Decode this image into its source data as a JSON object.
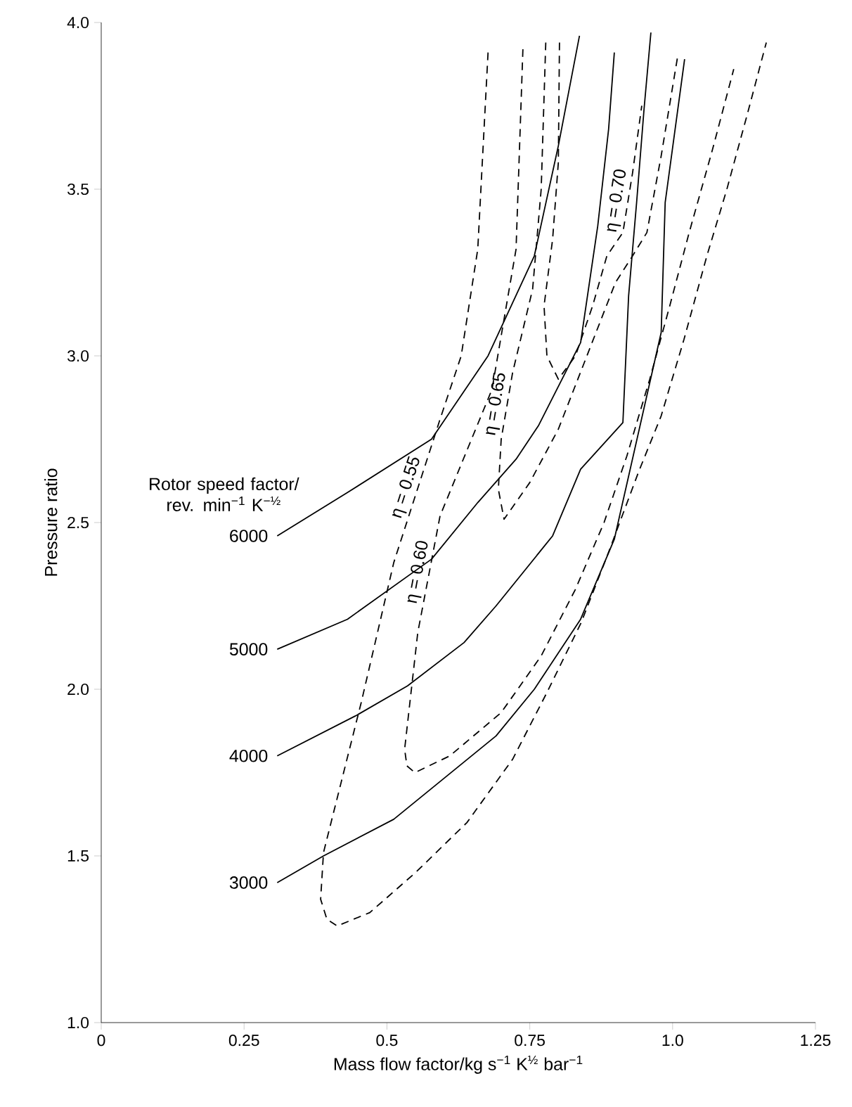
{
  "chart_data": {
    "type": "line",
    "xlabel": "Mass flow factor/kg s$^{−1}$ K$^{½}$ bar$^{−1}$",
    "ylabel": "Pressure ratio",
    "legend_title": "Rotor speed factor/ rev. min$^{−1}$ K$^{−½}$",
    "xlim": [
      0,
      1.25
    ],
    "ylim": [
      1.0,
      4.0
    ],
    "xticks": [
      0,
      0.25,
      {
        "value": 0.5,
        "label": "0.5"
      },
      0.75,
      {
        "value": 1.0,
        "label": "1.0"
      },
      1.25
    ],
    "yticks": [
      {
        "value": 1.0,
        "label": "1.0"
      },
      1.5,
      {
        "value": 2.0,
        "label": "2.0"
      },
      2.5,
      {
        "value": 3.0,
        "label": "3.0"
      },
      3.5,
      {
        "value": 4.0,
        "label": "4.0"
      }
    ],
    "series": [
      {
        "name": "3000",
        "color": "#000000",
        "line_style": "solid",
        "x": [
          0.308,
          0.389,
          0.512,
          0.691,
          0.758,
          0.839,
          0.898,
          0.972,
          0.98,
          0.987,
          1.021
        ],
        "values": [
          1.42,
          1.5,
          1.61,
          1.86,
          2.0,
          2.21,
          2.45,
          3.01,
          3.07,
          3.46,
          3.89
        ]
      },
      {
        "name": "4000",
        "color": "#000000",
        "line_style": "solid",
        "x": [
          0.308,
          0.445,
          0.536,
          0.635,
          0.691,
          0.79,
          0.839,
          0.913,
          0.923,
          0.937,
          0.95,
          0.962
        ],
        "values": [
          1.8,
          1.92,
          2.01,
          2.14,
          2.25,
          2.46,
          2.66,
          2.8,
          3.18,
          3.46,
          3.74,
          3.97
        ]
      },
      {
        "name": "5000",
        "color": "#000000",
        "line_style": "solid",
        "x": [
          0.308,
          0.431,
          0.578,
          0.659,
          0.726,
          0.765,
          0.839,
          0.869,
          0.888,
          0.898
        ],
        "values": [
          2.12,
          2.21,
          2.39,
          2.56,
          2.69,
          2.79,
          3.04,
          3.39,
          3.68,
          3.91
        ]
      },
      {
        "name": "6000",
        "color": "#000000",
        "line_style": "solid",
        "x": [
          0.308,
          0.431,
          0.578,
          0.677,
          0.758,
          0.8,
          0.837
        ],
        "values": [
          2.46,
          2.59,
          2.75,
          3.0,
          3.3,
          3.63,
          3.96
        ]
      },
      {
        "name": "η = 0.55",
        "color": "#000000",
        "line_style": "dashed",
        "x": [
          0.677,
          0.659,
          0.63,
          0.593,
          0.512,
          0.455,
          0.389,
          0.384,
          0.395,
          0.413,
          0.47,
          0.55,
          0.64,
          0.72,
          0.78,
          0.84,
          0.89,
          0.94,
          0.98,
          1.02,
          1.06,
          1.095,
          1.13,
          1.164
        ],
        "values": [
          3.91,
          3.32,
          3.0,
          2.81,
          2.38,
          1.96,
          1.51,
          1.37,
          1.31,
          1.29,
          1.33,
          1.45,
          1.6,
          1.79,
          1.99,
          2.2,
          2.42,
          2.65,
          2.82,
          3.05,
          3.3,
          3.5,
          3.72,
          3.94
        ]
      },
      {
        "name": "η = 0.60",
        "color": "#000000",
        "line_style": "dashed",
        "x": [
          0.738,
          0.726,
          0.684,
          0.593,
          0.554,
          0.531,
          0.535,
          0.549,
          0.61,
          0.7,
          0.77,
          0.83,
          0.88,
          0.92,
          0.96,
          0.995,
          1.029,
          1.07,
          1.107
        ],
        "values": [
          3.92,
          3.32,
          2.9,
          2.52,
          2.17,
          1.82,
          1.77,
          1.75,
          1.8,
          1.93,
          2.1,
          2.3,
          2.5,
          2.7,
          2.93,
          3.15,
          3.37,
          3.62,
          3.86
        ]
      },
      {
        "name": "η = 0.65",
        "color": "#000000",
        "line_style": "dashed",
        "x": [
          0.778,
          0.77,
          0.755,
          0.72,
          0.7,
          0.695,
          0.705,
          0.75,
          0.8,
          0.85,
          0.9,
          0.93,
          0.955,
          0.98,
          1.009
        ],
        "values": [
          3.94,
          3.5,
          3.2,
          2.95,
          2.75,
          2.6,
          2.51,
          2.62,
          2.78,
          3.0,
          3.22,
          3.3,
          3.37,
          3.6,
          3.9
        ]
      },
      {
        "name": "η = 0.70",
        "color": "#000000",
        "line_style": "dashed",
        "x": [
          0.802,
          0.8,
          0.79,
          0.775,
          0.78,
          0.8,
          0.83,
          0.86,
          0.885,
          0.913,
          0.93,
          0.946
        ],
        "values": [
          3.94,
          3.58,
          3.35,
          3.15,
          3.0,
          2.93,
          3.0,
          3.15,
          3.3,
          3.37,
          3.55,
          3.75
        ]
      }
    ]
  }
}
